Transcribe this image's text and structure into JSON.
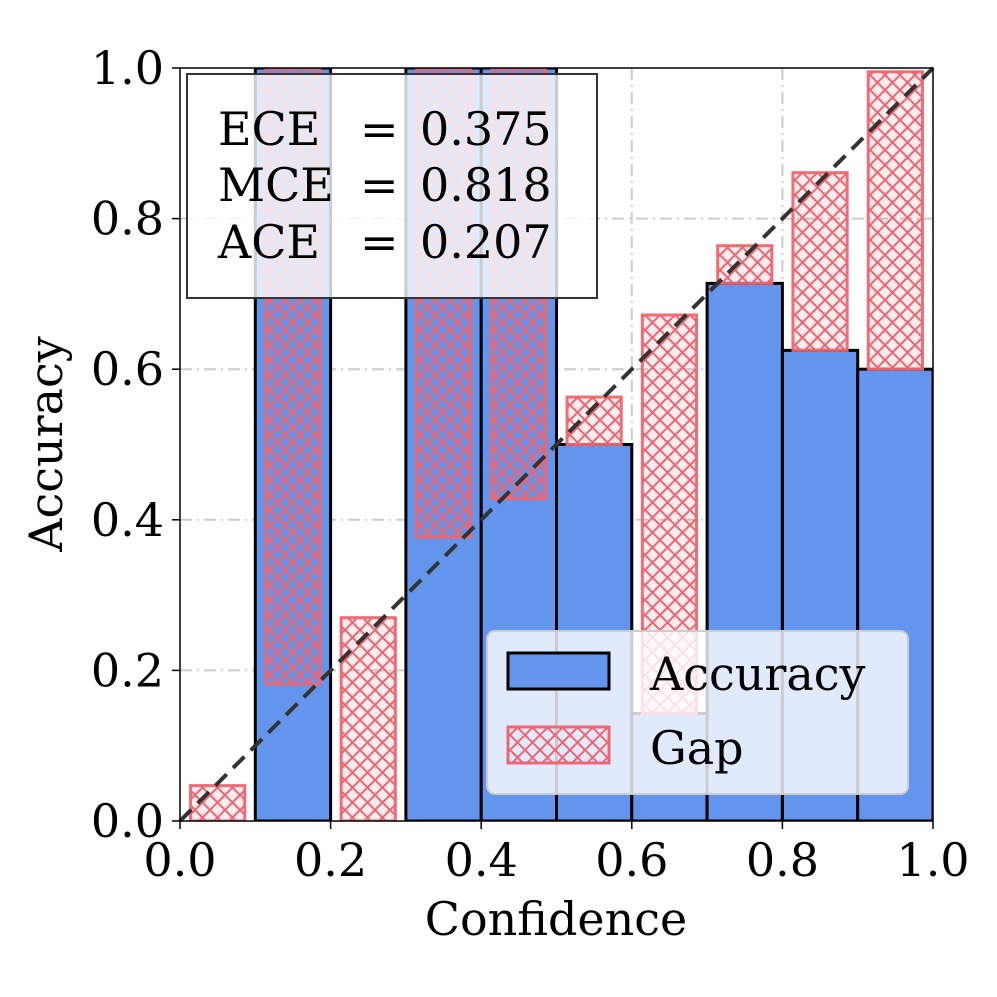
{
  "chart_data": {
    "type": "bar",
    "xlabel": "Confidence",
    "ylabel": "Accuracy",
    "xlim": [
      0,
      1
    ],
    "ylim": [
      0,
      1
    ],
    "xticks": [
      "0.0",
      "0.2",
      "0.4",
      "0.6",
      "0.8",
      "1.0"
    ],
    "yticks": [
      "0.0",
      "0.2",
      "0.4",
      "0.6",
      "0.8",
      "1.0"
    ],
    "grid": true,
    "bins": [
      {
        "x0": 0.0,
        "x1": 0.1,
        "accuracy": 0.0,
        "confidence": 0.047
      },
      {
        "x0": 0.1,
        "x1": 0.2,
        "accuracy": 1.0,
        "confidence": 0.182
      },
      {
        "x0": 0.2,
        "x1": 0.3,
        "accuracy": 0.0,
        "confidence": 0.27
      },
      {
        "x0": 0.3,
        "x1": 0.4,
        "accuracy": 1.0,
        "confidence": 0.377
      },
      {
        "x0": 0.4,
        "x1": 0.5,
        "accuracy": 1.0,
        "confidence": 0.428
      },
      {
        "x0": 0.5,
        "x1": 0.6,
        "accuracy": 0.5,
        "confidence": 0.563
      },
      {
        "x0": 0.6,
        "x1": 0.7,
        "accuracy": 0.143,
        "confidence": 0.672
      },
      {
        "x0": 0.7,
        "x1": 0.8,
        "accuracy": 0.714,
        "confidence": 0.764
      },
      {
        "x0": 0.8,
        "x1": 0.9,
        "accuracy": 0.625,
        "confidence": 0.861
      },
      {
        "x0": 0.9,
        "x1": 1.0,
        "accuracy": 0.6,
        "confidence": 0.995
      }
    ],
    "series": [
      {
        "name": "Accuracy",
        "color": "#6495ED"
      },
      {
        "name": "Gap",
        "color": "#F0656F",
        "hatch": "crosshatch"
      }
    ],
    "diagonal": {
      "style": "dashed",
      "color": "#333333"
    },
    "legend_position": "bottom-right",
    "metrics": [
      {
        "label": "ECE",
        "value": "0.375"
      },
      {
        "label": "MCE",
        "value": "0.818"
      },
      {
        "label": "ACE",
        "value": "0.207"
      }
    ]
  }
}
